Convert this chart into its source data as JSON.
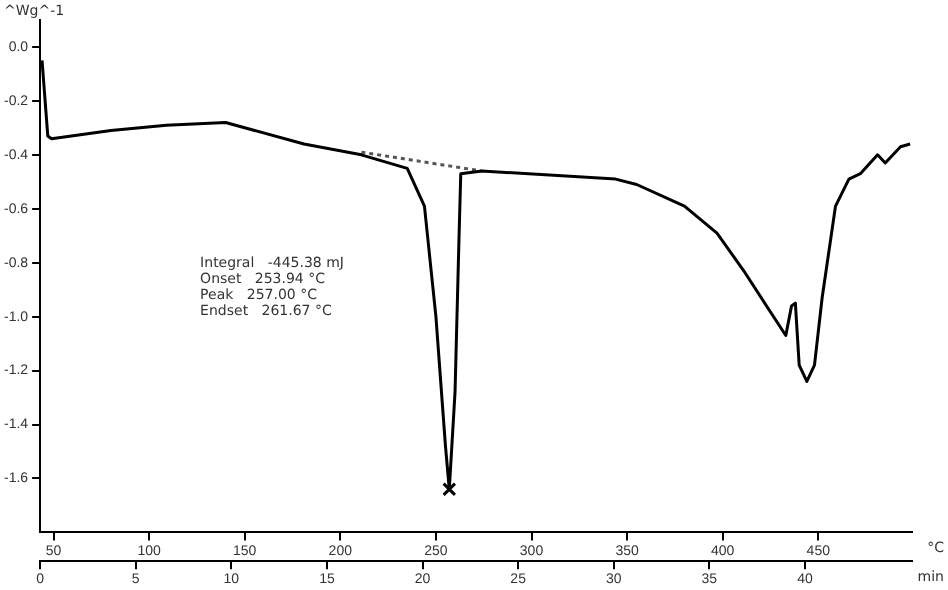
{
  "chart_data": {
    "type": "line",
    "ylabel": "^Wg^-1",
    "xlabel": "°C",
    "x2label": "min",
    "xlim": [
      43,
      499
    ],
    "xticks": [
      50,
      100,
      150,
      200,
      250,
      300,
      350,
      400,
      450
    ],
    "x2lim": [
      0,
      45.6
    ],
    "x2ticks": [
      0,
      5,
      10,
      15,
      20,
      25,
      30,
      35,
      40
    ],
    "ylim": [
      -1.8,
      0.1
    ],
    "yticks": [
      {
        "value": 0,
        "label": "0.0"
      },
      -0.2,
      -0.4,
      -0.6,
      -0.8,
      {
        "value": -1,
        "label": "-1.0"
      },
      -1.2,
      -1.4,
      -1.6
    ],
    "grid": false,
    "legend": false,
    "series": [
      {
        "color": "#000000",
        "marker": "none",
        "line_style": "solid",
        "x": [
          44,
          47,
          49,
          80,
          109,
          140,
          181,
          211,
          235,
          244,
          250,
          255,
          257,
          260,
          262,
          263,
          274,
          344,
          355,
          380,
          397,
          411,
          433,
          436,
          438,
          440,
          444,
          448,
          452,
          459,
          466,
          472,
          481,
          485,
          493,
          498
        ],
        "values": [
          -0.05,
          -0.33,
          -0.34,
          -0.31,
          -0.29,
          -0.28,
          -0.36,
          -0.4,
          -0.45,
          -0.59,
          -1.0,
          -1.48,
          -1.64,
          -1.28,
          -0.73,
          -0.47,
          -0.46,
          -0.49,
          -0.51,
          -0.59,
          -0.69,
          -0.83,
          -1.07,
          -0.96,
          -0.95,
          -1.18,
          -1.24,
          -1.18,
          -0.93,
          -0.59,
          -0.49,
          -0.47,
          -0.4,
          -0.43,
          -0.37,
          -0.36
        ]
      },
      {
        "type": "line",
        "color": "#555555",
        "marker": "none",
        "line_style": "dotted",
        "x": [
          211,
          274
        ],
        "values": [
          -0.39,
          -0.46
        ]
      },
      {
        "type": "scatter",
        "color": "#000000",
        "marker": "cross",
        "x": [
          257
        ],
        "values": [
          -1.64
        ]
      }
    ],
    "annotations": [
      "Integral   -445.38 mJ",
      "Onset   253.94 °C",
      "Peak   257.00 °C",
      "Endset   261.67 °C"
    ]
  }
}
